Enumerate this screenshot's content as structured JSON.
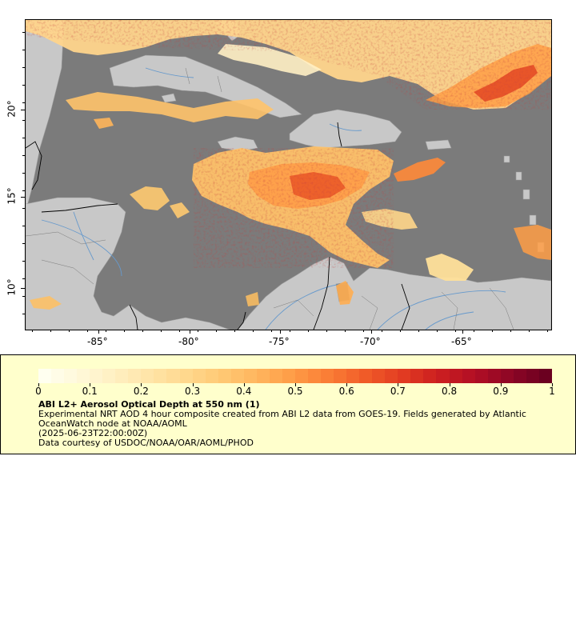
{
  "map": {
    "lon_ticks": [
      "-85°",
      "-80°",
      "-75°",
      "-70°",
      "-65°"
    ],
    "lat_ticks": [
      "20°",
      "15°",
      "10°"
    ],
    "colors": {
      "ocean": "#7b7b7b",
      "land": "#c8c8c8",
      "rivers": "#6699cc",
      "borders": "#000000"
    }
  },
  "legend": {
    "title": "ABI L2+ Aerosol Optical Depth at 550 nm (1)",
    "description": "Experimental NRT AOD 4 hour composite created from ABI L2 data from GOES-19. Fields generated by Atlantic OceanWatch node at NOAA/AOML",
    "timestamp": "(2025-06-23T22:00:00Z)",
    "credit": "Data courtesy of USDOC/NOAA/OAR/AOML/PHOD",
    "colorbar_ticks": [
      "0",
      "0.1",
      "0.2",
      "0.3",
      "0.4",
      "0.5",
      "0.6",
      "0.7",
      "0.8",
      "0.9",
      "1"
    ],
    "colorbar_colors": [
      "#fffff0",
      "#fff8d8",
      "#ffefc0",
      "#ffe4a6",
      "#ffd78c",
      "#ffc873",
      "#ffb45c",
      "#fe9a45",
      "#fa7b34",
      "#f05a28",
      "#e23b22",
      "#cc1f20",
      "#b20f25",
      "#8e0625",
      "#6b0020"
    ]
  }
}
